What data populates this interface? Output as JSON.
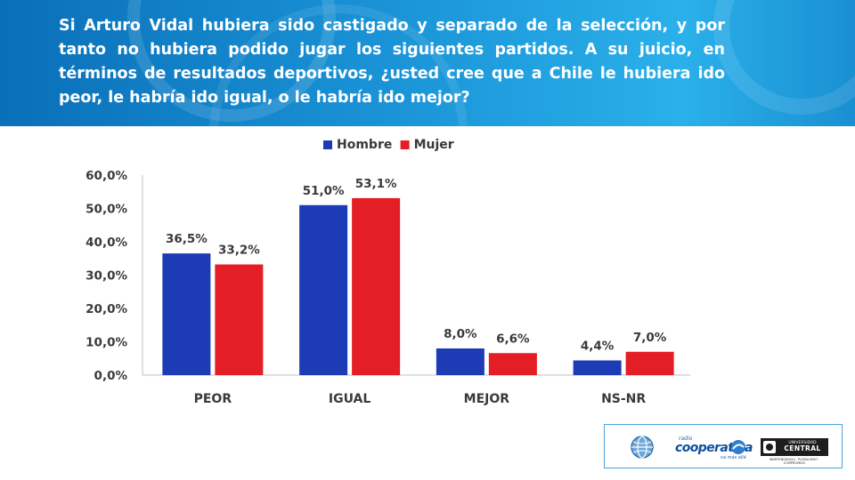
{
  "header": {
    "question": "Si Arturo Vidal hubiera sido castigado y separado de la selección, y por tanto no hubiera podido jugar los siguientes partidos. A su juicio, en términos de resultados deportivos, ¿usted cree que a Chile le hubiera ido peor, le habría ido igual, o le habría ido mejor?"
  },
  "colors": {
    "header_blue": "#1a93d6",
    "hombre": "#1c3bb5",
    "mujer": "#e31e24",
    "text": "#3a3a3a"
  },
  "chart_data": {
    "type": "bar",
    "categories": [
      "PEOR",
      "IGUAL",
      "MEJOR",
      "NS-NR"
    ],
    "series": [
      {
        "name": "Hombre",
        "values": [
          36.5,
          51.0,
          8.0,
          4.4
        ],
        "labels": [
          "36,5%",
          "51,0%",
          "8,0%",
          "4,4%"
        ],
        "color": "#1c3bb5"
      },
      {
        "name": "Mujer",
        "values": [
          33.2,
          53.1,
          6.6,
          7.0
        ],
        "labels": [
          "33,2%",
          "53,1%",
          "6,6%",
          "7,0%"
        ],
        "color": "#e31e24"
      }
    ],
    "yticks": [
      0,
      10,
      20,
      30,
      40,
      50,
      60
    ],
    "ytick_labels": [
      "0,0%",
      "10,0%",
      "20,0%",
      "30,0%",
      "40,0%",
      "50,0%",
      "60,0%"
    ],
    "ylim": [
      0,
      60
    ],
    "xlabel": "",
    "ylabel": "",
    "grid": false,
    "legend_position": "top"
  },
  "logos": {
    "radio_small": "radio",
    "cooperativa": "cooperativa",
    "cooperativa_tagline": "va más allá",
    "ucen_top": "UNIVERSIDAD",
    "ucen_name": "CENTRAL",
    "ucen_tagline": "INDEPENDENCIA · PLURALISMO · COMPROMISO"
  }
}
